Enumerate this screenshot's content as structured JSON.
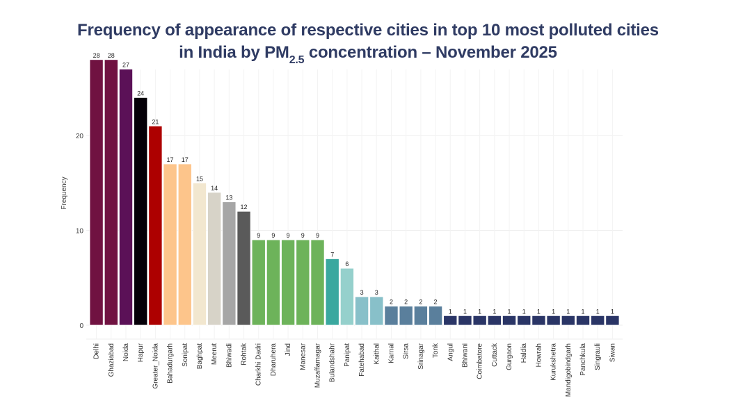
{
  "chart_data": {
    "type": "bar",
    "title_line1": "Frequency of appearance of respective cities in top 10 most polluted cities",
    "title_line2_pre": "in India by PM",
    "title_line2_sub": "2.5",
    "title_line2_post": " concentration – November 2025",
    "xlabel": "",
    "ylabel": "Frequency",
    "ylim": [
      0,
      29
    ],
    "yticks": [
      0,
      10,
      20
    ],
    "grid": true,
    "categories": [
      "Delhi",
      "Ghaziabad",
      "Noida",
      "Hapur",
      "Greater_Noida",
      "Bahadurgarh",
      "Sonipat",
      "Baghpat",
      "Meerut",
      "Bhiwadi",
      "Rohtak",
      "Charkhi Dadri",
      "Dharuhera",
      "Jind",
      "Manesar",
      "Muzaffarnagar",
      "Bulandshahr",
      "Panipat",
      "Fatehabad",
      "Kaithal",
      "Karnal",
      "Sirsa",
      "Srinagar",
      "Tonk",
      "Angul",
      "Bhiwani",
      "Coimbatore",
      "Cuttack",
      "Gurgaon",
      "Haldia",
      "Howrah",
      "Kurukshetra",
      "Mandigobindgarh",
      "Panchkula",
      "Singrauli",
      "Siwan"
    ],
    "values": [
      28,
      28,
      27,
      24,
      21,
      17,
      17,
      15,
      14,
      13,
      12,
      9,
      9,
      9,
      9,
      9,
      7,
      6,
      3,
      3,
      2,
      2,
      2,
      2,
      1,
      1,
      1,
      1,
      1,
      1,
      1,
      1,
      1,
      1,
      1,
      1
    ],
    "colors": [
      "#701241",
      "#701241",
      "#5b1157",
      "#050008",
      "#ad0000",
      "#fdc58b",
      "#fdc58b",
      "#f2e7cf",
      "#d7d3c8",
      "#a6a6a6",
      "#5a5a5a",
      "#6db35a",
      "#6db35a",
      "#6db35a",
      "#6db35a",
      "#6db35a",
      "#3aa89f",
      "#95d0cc",
      "#88c0c9",
      "#88c0c9",
      "#5a7f9c",
      "#5a7f9c",
      "#5a7f9c",
      "#5a7f9c",
      "#2a3566",
      "#2a3566",
      "#2a3566",
      "#2a3566",
      "#2a3566",
      "#2a3566",
      "#2a3566",
      "#2a3566",
      "#2a3566",
      "#2a3566",
      "#2a3566",
      "#2a3566"
    ]
  }
}
